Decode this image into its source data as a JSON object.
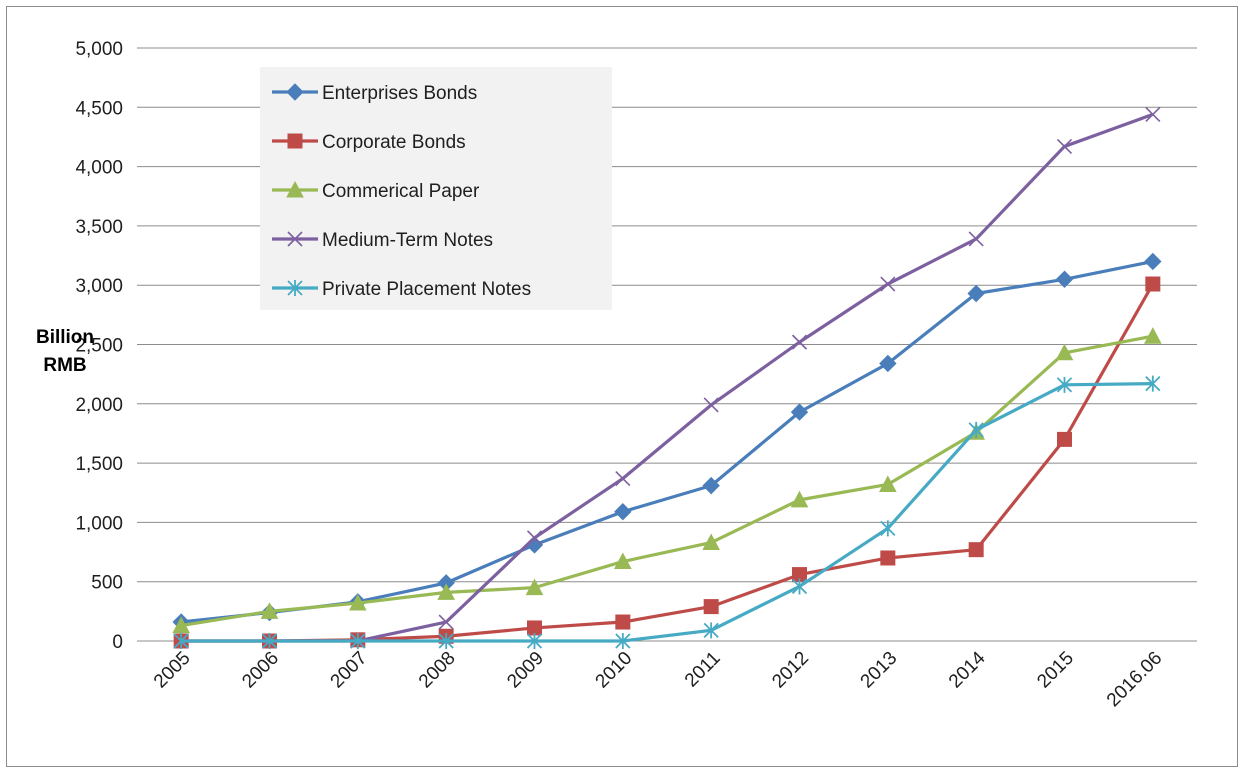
{
  "chart_data": {
    "type": "line",
    "title": "",
    "xlabel": "",
    "ylabel": [
      "Billion",
      "RMB"
    ],
    "categories": [
      "2005",
      "2006",
      "2007",
      "2008",
      "2009",
      "2010",
      "2011",
      "2012",
      "2013",
      "2014",
      "2015",
      "2016.06"
    ],
    "ylim": [
      0,
      5000
    ],
    "yticks": [
      0,
      500,
      1000,
      1500,
      2000,
      2500,
      3000,
      3500,
      4000,
      4500,
      5000
    ],
    "ytick_labels": [
      "0",
      "500",
      "1,000",
      "1,500",
      "2,000",
      "2,500",
      "3,000",
      "3,500",
      "4,000",
      "4,500",
      "5,000"
    ],
    "grid": "horizontal",
    "legend_position": "top-left",
    "series": [
      {
        "name": "Enterprises Bonds",
        "color": "#4a7ebb",
        "marker": "diamond",
        "values": [
          160,
          240,
          330,
          490,
          810,
          1090,
          1310,
          1930,
          2340,
          2930,
          3050,
          3200
        ]
      },
      {
        "name": "Corporate Bonds",
        "color": "#be4b48",
        "marker": "square",
        "values": [
          0,
          0,
          10,
          40,
          110,
          160,
          290,
          560,
          700,
          770,
          1700,
          3010
        ]
      },
      {
        "name": "Commerical Paper",
        "color": "#98b954",
        "marker": "triangle",
        "values": [
          130,
          250,
          320,
          410,
          450,
          670,
          830,
          1190,
          1320,
          1760,
          2430,
          2570
        ]
      },
      {
        "name": "Medium-Term Notes",
        "color": "#7d60a0",
        "marker": "x",
        "values": [
          0,
          0,
          0,
          160,
          870,
          1370,
          1990,
          2520,
          3010,
          3390,
          4170,
          4440
        ]
      },
      {
        "name": "Private Placement Notes",
        "color": "#46aac5",
        "marker": "star",
        "values": [
          0,
          0,
          0,
          0,
          0,
          0,
          90,
          460,
          950,
          1780,
          2160,
          2170
        ]
      }
    ]
  }
}
